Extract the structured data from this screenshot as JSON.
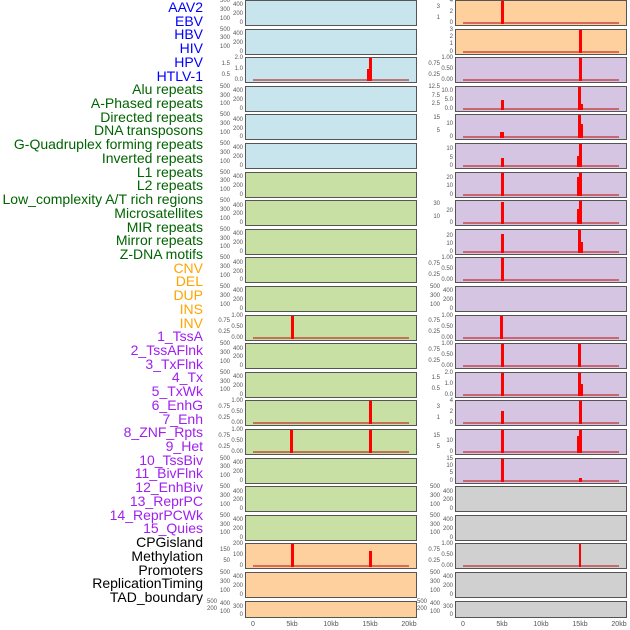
{
  "chart_data": {
    "type": "bar",
    "title": "",
    "xlabel": "",
    "ylabel": "",
    "x_ticks": [
      "0",
      "5kb",
      "10kb",
      "15kb",
      "20kb"
    ],
    "xlim_kb": [
      0,
      20
    ],
    "group_colors": {
      "virus": "#0000ff",
      "repeat": "#006400",
      "sv": "#ffa500",
      "chromhmm": "#a020f0",
      "other": "#000000"
    },
    "panel_colors": {
      "virus": "#c8e4ec",
      "repeat": "#c8e0a3",
      "sv": "#fdd09d",
      "chromhmm": "#d6c5e2",
      "other": "#d0d0d0"
    },
    "columns": [
      [
        {
          "label": "AAV2",
          "group": "virus",
          "yticks": [
            "0",
            "100",
            "200",
            "300",
            "400",
            "500"
          ],
          "ymax": 500,
          "bars": [],
          "baseline": false
        },
        {
          "label": "EBV",
          "group": "virus",
          "yticks": [
            "0",
            "100",
            "200",
            "300",
            "400",
            "500"
          ],
          "ymax": 500,
          "bars": [],
          "baseline": false
        },
        {
          "label": "HBV",
          "group": "virus",
          "yticks": [
            "0.0",
            "0.5",
            "1.0",
            "1.5",
            "2.0"
          ],
          "ymax": 2,
          "bars": [
            {
              "x": 14.85,
              "y": 1
            },
            {
              "x": 15.1,
              "y": 2
            }
          ],
          "baseline": true
        },
        {
          "label": "HIV",
          "group": "virus",
          "yticks": [
            "0",
            "100",
            "200",
            "300",
            "400",
            "500"
          ],
          "ymax": 500,
          "bars": [],
          "baseline": false
        },
        {
          "label": "HPV",
          "group": "virus",
          "yticks": [
            "0",
            "100",
            "200",
            "300",
            "400",
            "500"
          ],
          "ymax": 500,
          "bars": [],
          "baseline": false
        },
        {
          "label": "HTLV-1",
          "group": "virus",
          "yticks": [
            "0",
            "100",
            "200",
            "300",
            "400",
            "500"
          ],
          "ymax": 500,
          "bars": [],
          "baseline": false
        },
        {
          "label": "Alu repeats",
          "group": "repeat",
          "yticks": [
            "0",
            "100",
            "200",
            "300",
            "400",
            "500"
          ],
          "ymax": 500,
          "bars": [],
          "baseline": false
        },
        {
          "label": "A-Phased repeats",
          "group": "repeat",
          "yticks": [
            "0",
            "100",
            "200",
            "300",
            "400",
            "500"
          ],
          "ymax": 500,
          "bars": [],
          "baseline": false
        },
        {
          "label": "Directed repeats",
          "group": "repeat",
          "yticks": [
            "0",
            "100",
            "200",
            "300",
            "400",
            "500"
          ],
          "ymax": 500,
          "bars": [],
          "baseline": false
        },
        {
          "label": "DNA transposons",
          "group": "repeat",
          "yticks": [
            "0",
            "100",
            "200",
            "300",
            "400",
            "500"
          ],
          "ymax": 500,
          "bars": [],
          "baseline": false
        },
        {
          "label": "G-Quadruplex forming repeats",
          "group": "repeat",
          "yticks": [
            "0",
            "100",
            "200",
            "300",
            "400",
            "500"
          ],
          "ymax": 500,
          "bars": [],
          "baseline": false
        },
        {
          "label": "Inverted repeats",
          "group": "repeat",
          "yticks": [
            "0.00",
            "0.25",
            "0.50",
            "0.75",
            "1.00"
          ],
          "ymax": 1,
          "bars": [
            {
              "x": 5,
              "y": 1
            }
          ],
          "baseline": true
        },
        {
          "label": "L1 repeats",
          "group": "repeat",
          "yticks": [
            "0",
            "100",
            "200",
            "300",
            "400",
            "500"
          ],
          "ymax": 500,
          "bars": [],
          "baseline": false
        },
        {
          "label": "L2 repeats",
          "group": "repeat",
          "yticks": [
            "0",
            "100",
            "200",
            "300",
            "400",
            "500"
          ],
          "ymax": 500,
          "bars": [],
          "baseline": false
        },
        {
          "label": "Low_complexity A/T rich regions",
          "group": "repeat",
          "yticks": [
            "0.00",
            "0.25",
            "0.50",
            "0.75",
            "1.00"
          ],
          "ymax": 1,
          "bars": [
            {
              "x": 15,
              "y": 1
            }
          ],
          "baseline": true
        },
        {
          "label": "Microsatellites",
          "group": "repeat",
          "yticks": [
            "0.00",
            "0.25",
            "0.50",
            "0.75",
            "1.00"
          ],
          "ymax": 1,
          "bars": [
            {
              "x": 4.9,
              "y": 1
            },
            {
              "x": 15,
              "y": 1
            }
          ],
          "baseline": true
        },
        {
          "label": "MIR repeats",
          "group": "repeat",
          "yticks": [
            "0",
            "100",
            "200",
            "300",
            "400",
            "500"
          ],
          "ymax": 500,
          "bars": [],
          "baseline": false
        },
        {
          "label": "Mirror repeats",
          "group": "repeat",
          "yticks": [
            "0",
            "100",
            "200",
            "300",
            "400",
            "500"
          ],
          "ymax": 500,
          "bars": [],
          "baseline": false
        },
        {
          "label": "Z-DNA motifs",
          "group": "repeat",
          "yticks": [
            "0",
            "100",
            "200",
            "300",
            "400",
            "500"
          ],
          "ymax": 500,
          "bars": [],
          "baseline": false
        },
        {
          "label": "CNV",
          "group": "sv",
          "yticks": [
            "0",
            "50",
            "100",
            "150",
            "200"
          ],
          "ymax": 200,
          "bars": [
            {
              "x": 5,
              "y": 200
            },
            {
              "x": 15,
              "y": 140
            }
          ],
          "baseline": true
        },
        {
          "label": "DEL",
          "group": "sv",
          "yticks": [
            "0",
            "100",
            "200",
            "300",
            "400",
            "500"
          ],
          "ymax": 500,
          "bars": [],
          "baseline": false
        },
        {
          "label": "DUP",
          "group": "sv",
          "yticks": [
            "0",
            "100",
            "200",
            "300",
            "400",
            "500"
          ],
          "ymax": 500,
          "bars": [],
          "baseline": false
        }
      ],
      [
        {
          "label": "INS",
          "group": "sv",
          "yticks": [
            "0",
            "1",
            "2",
            "3",
            "4"
          ],
          "ymax": 4,
          "bars": [
            {
              "x": 5,
              "y": 4
            }
          ],
          "baseline": true
        },
        {
          "label": "INV",
          "group": "sv",
          "yticks": [
            "0",
            "1",
            "2",
            "3"
          ],
          "ymax": 3,
          "bars": [
            {
              "x": 15,
              "y": 3
            }
          ],
          "baseline": true
        },
        {
          "label": "1_TssA",
          "group": "chromhmm",
          "yticks": [
            "0.00",
            "0.25",
            "0.50",
            "0.75",
            "1.00"
          ],
          "ymax": 1,
          "bars": [
            {
              "x": 15,
              "y": 1
            }
          ],
          "baseline": true
        },
        {
          "label": "2_TssAFlnk",
          "group": "chromhmm",
          "yticks": [
            "0.0",
            "2.5",
            "5.0",
            "7.5",
            "10.0",
            "12.5"
          ],
          "ymax": 12.5,
          "bars": [
            {
              "x": 5,
              "y": 5
            },
            {
              "x": 14.9,
              "y": 12.5
            },
            {
              "x": 15.15,
              "y": 3
            }
          ],
          "baseline": true
        },
        {
          "label": "3_TxFlnk",
          "group": "chromhmm",
          "yticks": [
            "0",
            "5",
            "10",
            "15"
          ],
          "ymax": 17,
          "bars": [
            {
              "x": 4.9,
              "y": 4.5
            },
            {
              "x": 5.1,
              "y": 4
            },
            {
              "x": 14.9,
              "y": 17
            },
            {
              "x": 15.15,
              "y": 10
            }
          ],
          "baseline": true
        },
        {
          "label": "4_Tx",
          "group": "chromhmm",
          "yticks": [
            "0",
            "5",
            "10"
          ],
          "ymax": 13,
          "bars": [
            {
              "x": 5,
              "y": 4.5
            },
            {
              "x": 14.85,
              "y": 6
            },
            {
              "x": 15.1,
              "y": 13
            }
          ],
          "baseline": true
        },
        {
          "label": "5_TxWk",
          "group": "chromhmm",
          "yticks": [
            "0",
            "10",
            "20"
          ],
          "ymax": 26,
          "bars": [
            {
              "x": 5,
              "y": 25
            },
            {
              "x": 14.85,
              "y": 21
            },
            {
              "x": 15.1,
              "y": 26
            }
          ],
          "baseline": true
        },
        {
          "label": "6_EnhG",
          "group": "chromhmm",
          "yticks": [
            "0",
            "10",
            "20",
            "30"
          ],
          "ymax": 35,
          "bars": [
            {
              "x": 5,
              "y": 33
            },
            {
              "x": 14.85,
              "y": 22
            },
            {
              "x": 15.1,
              "y": 35
            }
          ],
          "baseline": true
        },
        {
          "label": "7_Enh",
          "group": "chromhmm",
          "yticks": [
            "0",
            "10",
            "20"
          ],
          "ymax": 27,
          "bars": [
            {
              "x": 5,
              "y": 22
            },
            {
              "x": 14.9,
              "y": 27
            },
            {
              "x": 15.15,
              "y": 12
            }
          ],
          "baseline": true
        },
        {
          "label": "8_ZNF_Rpts",
          "group": "chromhmm",
          "yticks": [
            "0.00",
            "0.25",
            "0.50",
            "0.75",
            "1.00"
          ],
          "ymax": 1,
          "bars": [
            {
              "x": 5,
              "y": 1
            }
          ],
          "baseline": true
        },
        {
          "label": "9_Het",
          "group": "chromhmm",
          "yticks": [
            "0",
            "100",
            "200",
            "300",
            "400",
            "500"
          ],
          "ymax": 500,
          "bars": [],
          "baseline": false
        },
        {
          "label": "10_TssBiv",
          "group": "chromhmm",
          "yticks": [
            "0.00",
            "0.25",
            "0.50",
            "0.75",
            "1.00"
          ],
          "ymax": 1,
          "bars": [
            {
              "x": 4.9,
              "y": 1
            }
          ],
          "baseline": true
        },
        {
          "label": "11_BivFlnk",
          "group": "chromhmm",
          "yticks": [
            "0.00",
            "0.25",
            "0.50",
            "0.75",
            "1.00"
          ],
          "ymax": 1,
          "bars": [
            {
              "x": 5,
              "y": 1
            },
            {
              "x": 14.9,
              "y": 1
            }
          ],
          "baseline": true
        },
        {
          "label": "12_EnhBiv",
          "group": "chromhmm",
          "yticks": [
            "0.0",
            "0.5",
            "1.0",
            "1.5",
            "2.0"
          ],
          "ymax": 2,
          "bars": [
            {
              "x": 5,
              "y": 2
            },
            {
              "x": 14.9,
              "y": 2
            },
            {
              "x": 15.15,
              "y": 1
            }
          ],
          "baseline": true
        },
        {
          "label": "13_ReprPC",
          "group": "chromhmm",
          "yticks": [
            "0",
            "1",
            "2",
            "3",
            "4"
          ],
          "ymax": 4,
          "bars": [
            {
              "x": 5,
              "y": 2.2
            },
            {
              "x": 15,
              "y": 4
            }
          ],
          "baseline": true
        },
        {
          "label": "14_ReprPCWk",
          "group": "chromhmm",
          "yticks": [
            "0",
            "5",
            "10",
            "15"
          ],
          "ymax": 20,
          "bars": [
            {
              "x": 5,
              "y": 20
            },
            {
              "x": 14.85,
              "y": 15
            },
            {
              "x": 15.1,
              "y": 20
            }
          ],
          "baseline": true
        },
        {
          "label": "15_Quies",
          "group": "chromhmm",
          "yticks": [
            "0",
            "5",
            "10",
            "15"
          ],
          "ymax": 15,
          "bars": [
            {
              "x": 5,
              "y": 15
            },
            {
              "x": 15,
              "y": 2
            }
          ],
          "baseline": true
        },
        {
          "label": "CPGisland",
          "group": "other",
          "yticks": [
            "0",
            "100",
            "200",
            "300",
            "400",
            "500"
          ],
          "ymax": 500,
          "bars": [],
          "baseline": false
        },
        {
          "label": "Methylation",
          "group": "other",
          "yticks": [
            "0",
            "100",
            "200",
            "300",
            "400",
            "500"
          ],
          "ymax": 500,
          "bars": [],
          "baseline": false
        },
        {
          "label": "Promoters",
          "group": "other",
          "yticks": [
            "0.00",
            "0.25",
            "0.50",
            "0.75",
            "1.00"
          ],
          "ymax": 1,
          "bars": [
            {
              "x": 15,
              "y": 1,
              "thin": true
            }
          ],
          "baseline": true
        },
        {
          "label": "ReplicationTiming",
          "group": "other",
          "yticks": [
            "0",
            "100",
            "200",
            "300",
            "400",
            "500"
          ],
          "ymax": 500,
          "bars": [],
          "baseline": false
        },
        {
          "label": "TAD_boundary",
          "group": "other",
          "yticks": [
            "0",
            "100",
            "200",
            "300",
            "400",
            "500"
          ],
          "ymax": 500,
          "bars": [],
          "baseline": false
        }
      ]
    ]
  }
}
